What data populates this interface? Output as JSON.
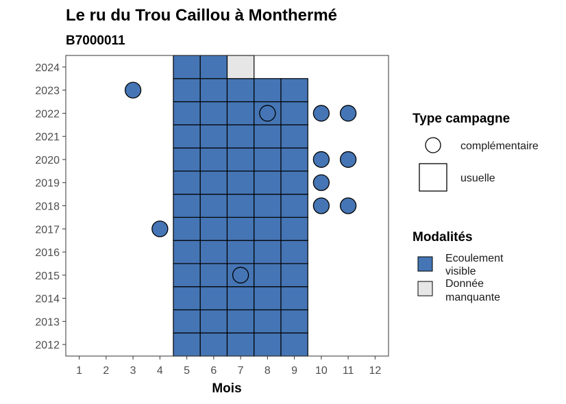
{
  "chart_data": {
    "type": "heatmap",
    "title": "Le ru du Trou Caillou à Monthermé",
    "subtitle": "B7000011",
    "xlabel": "Mois",
    "ylabel": "",
    "x_ticks": [
      1,
      2,
      3,
      4,
      5,
      6,
      7,
      8,
      9,
      10,
      11,
      12
    ],
    "y_ticks": [
      2012,
      2013,
      2014,
      2015,
      2016,
      2017,
      2018,
      2019,
      2020,
      2021,
      2022,
      2023,
      2024
    ],
    "xlim": [
      0.5,
      12.5
    ],
    "ylim": [
      2011.5,
      2024.5
    ],
    "grid": false,
    "colors": {
      "Ecoulement visible": "#4575b4",
      "Donnée manquante": "#e6e6e6"
    },
    "usuelle": [
      {
        "year": 2012,
        "months": [
          5,
          6,
          7,
          8,
          9
        ],
        "modalite": "Ecoulement visible"
      },
      {
        "year": 2013,
        "months": [
          5,
          6,
          7,
          8,
          9
        ],
        "modalite": "Ecoulement visible"
      },
      {
        "year": 2014,
        "months": [
          5,
          6,
          7,
          8,
          9
        ],
        "modalite": "Ecoulement visible"
      },
      {
        "year": 2015,
        "months": [
          5,
          6,
          7,
          8,
          9
        ],
        "modalite": "Ecoulement visible"
      },
      {
        "year": 2016,
        "months": [
          5,
          6,
          7,
          8,
          9
        ],
        "modalite": "Ecoulement visible"
      },
      {
        "year": 2017,
        "months": [
          5,
          6,
          7,
          8,
          9
        ],
        "modalite": "Ecoulement visible"
      },
      {
        "year": 2018,
        "months": [
          5,
          6,
          7,
          8,
          9
        ],
        "modalite": "Ecoulement visible"
      },
      {
        "year": 2019,
        "months": [
          5,
          6,
          7,
          8,
          9
        ],
        "modalite": "Ecoulement visible"
      },
      {
        "year": 2020,
        "months": [
          5,
          6,
          7,
          8,
          9
        ],
        "modalite": "Ecoulement visible"
      },
      {
        "year": 2021,
        "months": [
          5,
          6,
          7,
          8,
          9
        ],
        "modalite": "Ecoulement visible"
      },
      {
        "year": 2022,
        "months": [
          5,
          6,
          7,
          8,
          9
        ],
        "modalite": "Ecoulement visible"
      },
      {
        "year": 2023,
        "months": [
          5,
          6,
          7,
          8,
          9
        ],
        "modalite": "Ecoulement visible"
      },
      {
        "year": 2024,
        "months": [
          5,
          6
        ],
        "modalite": "Ecoulement visible"
      },
      {
        "year": 2024,
        "months": [
          7
        ],
        "modalite": "Donnée manquante"
      }
    ],
    "complementaire": [
      {
        "year": 2023,
        "month": 3,
        "modalite": "Ecoulement visible"
      },
      {
        "year": 2022,
        "month": 8,
        "modalite": "Ecoulement visible"
      },
      {
        "year": 2022,
        "month": 10,
        "modalite": "Ecoulement visible"
      },
      {
        "year": 2022,
        "month": 11,
        "modalite": "Ecoulement visible"
      },
      {
        "year": 2020,
        "month": 10,
        "modalite": "Ecoulement visible"
      },
      {
        "year": 2020,
        "month": 11,
        "modalite": "Ecoulement visible"
      },
      {
        "year": 2019,
        "month": 10,
        "modalite": "Ecoulement visible"
      },
      {
        "year": 2018,
        "month": 10,
        "modalite": "Ecoulement visible"
      },
      {
        "year": 2018,
        "month": 11,
        "modalite": "Ecoulement visible"
      },
      {
        "year": 2017,
        "month": 4,
        "modalite": "Ecoulement visible"
      },
      {
        "year": 2015,
        "month": 7,
        "modalite": "Ecoulement visible"
      }
    ],
    "legend": {
      "placement": "right",
      "type_title": "Type campagne",
      "type_items": [
        "complémentaire",
        "usuelle"
      ],
      "modalites_title": "Modalités",
      "modalites_items": [
        {
          "line1": "Ecoulement",
          "line2": "visible",
          "color": "#4575b4"
        },
        {
          "line1": "Donnée",
          "line2": "manquante",
          "color": "#e6e6e6"
        }
      ]
    }
  }
}
